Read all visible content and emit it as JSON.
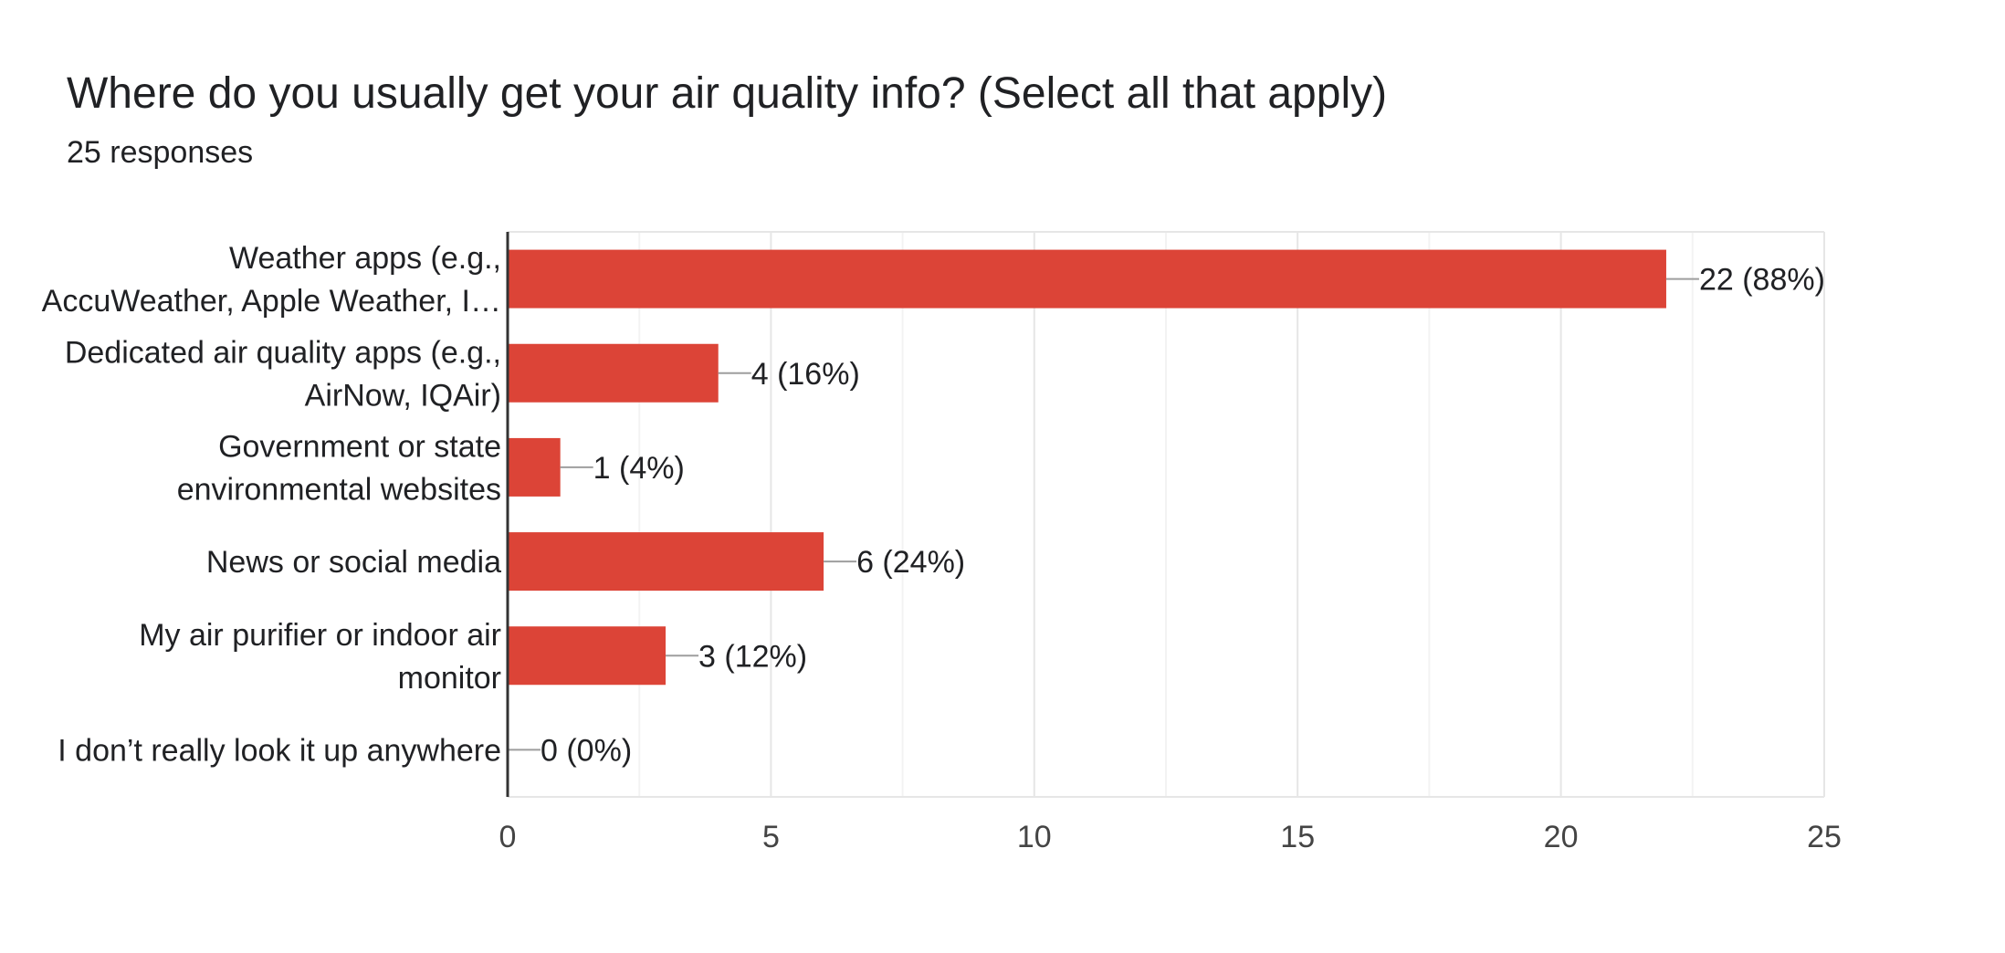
{
  "title": "Where do you usually get your air quality info? (Select all that apply)",
  "subtitle": "25 responses",
  "chart_data": {
    "type": "bar",
    "orientation": "horizontal",
    "categories": [
      [
        "Weather apps (e.g.,",
        "AccuWeather, Apple Weather, I…"
      ],
      [
        "Dedicated air quality apps (e.g.,",
        "AirNow, IQAir)"
      ],
      [
        "Government or state",
        "environmental websites"
      ],
      [
        "News or social media"
      ],
      [
        "My air purifier or indoor air",
        "monitor"
      ],
      [
        "I don’t really look it up anywhere"
      ]
    ],
    "values": [
      22,
      4,
      1,
      6,
      3,
      0
    ],
    "data_labels": [
      "22 (88%)",
      "4 (16%)",
      "1 (4%)",
      "6 (24%)",
      "3 (12%)",
      "0 (0%)"
    ],
    "xlim": [
      0,
      25
    ],
    "xticks": [
      0,
      5,
      10,
      15,
      20,
      25
    ],
    "minor_grid": true,
    "grid": true,
    "bar_color": "#dc4437",
    "legend": "none"
  }
}
